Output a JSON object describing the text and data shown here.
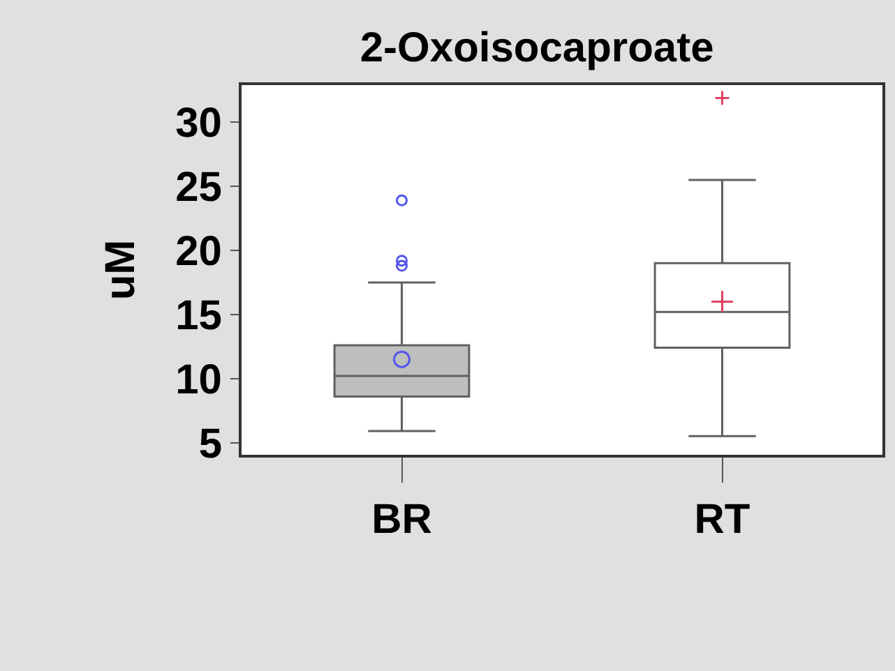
{
  "chart_data": {
    "type": "box",
    "title": "2-Oxoisocaproate",
    "ylabel": "uM",
    "categories": [
      "BR",
      "RT"
    ],
    "colors": [
      "#5555ee",
      "#dd4466"
    ],
    "series": [
      {
        "color": "#bebebe",
        "marker": "circle",
        "boxes": [
          {
            "low": 5.9,
            "q1": 8.6,
            "median": 10.2,
            "q3": 12.6,
            "high": 17.5,
            "mean": 11.5,
            "outliers": [
              23.9,
              19.2,
              18.8
            ]
          },
          null
        ]
      },
      {
        "color": "#ffffff",
        "marker": "cross",
        "boxes": [
          null,
          {
            "low": 5.5,
            "q1": 12.4,
            "median": 15.2,
            "q3": 19.0,
            "high": 25.5,
            "mean": 16.0,
            "outliers": [
              31.9
            ]
          }
        ]
      }
    ],
    "ylim": [
      4.05,
      32.9
    ],
    "yticks": [
      5,
      10,
      15,
      20,
      25,
      30
    ]
  }
}
